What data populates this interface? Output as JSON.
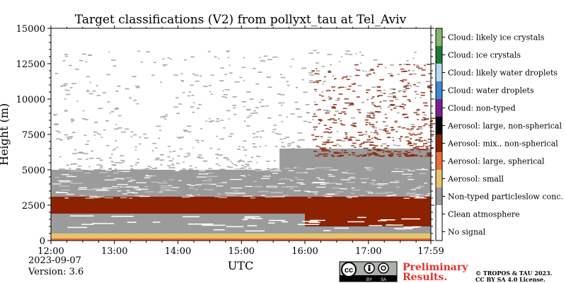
{
  "chart_data": {
    "type": "heatmap",
    "title": "Target classifications (V2) from pollyxt_tau at Tel_Aviv",
    "xlabel": "UTC",
    "ylabel": "Height (m)",
    "x_ticks": [
      "12:00",
      "13:00",
      "14:00",
      "15:00",
      "16:00",
      "17:00",
      "17:59"
    ],
    "x_range_hours": [
      12.0,
      17.983
    ],
    "y_ticks": [
      0,
      2500,
      5000,
      7500,
      10000,
      12500,
      15000
    ],
    "y_range": [
      0,
      15000
    ],
    "classes": [
      {
        "label": "No signal",
        "color": "#ffffff"
      },
      {
        "label": "Clean atmosphere",
        "color": "#ffffff"
      },
      {
        "label": "Non-typed particleslow conc.",
        "color": "#9b9b9b"
      },
      {
        "label": "Aerosol: small",
        "color": "#e6c46e"
      },
      {
        "label": "Aerosol: large, spherical",
        "color": "#e8703a"
      },
      {
        "label": "Aerosol: mix., non-spherical",
        "color": "#8c2202"
      },
      {
        "label": "Aerosol: large, non-spherical",
        "color": "#050505"
      },
      {
        "label": "Cloud: non-typed",
        "color": "#7e1f8e"
      },
      {
        "label": "Cloud: water droplets",
        "color": "#3c8ad0"
      },
      {
        "label": "Cloud: likely water droplets",
        "color": "#b9d9f2"
      },
      {
        "label": "Cloud: ice crystals",
        "color": "#1f7a36"
      },
      {
        "label": "Cloud: likely ice crystals",
        "color": "#86b86a"
      }
    ],
    "layers": [
      {
        "class": "Aerosol: small",
        "from_hour": 12.0,
        "to_hour": 17.983,
        "bottom_m": 0,
        "top_m": 1200
      },
      {
        "class": "Aerosol: large, spherical",
        "from_hour": 12.0,
        "to_hour": 17.983,
        "bottom_m": 0,
        "top_m": 150
      },
      {
        "class": "Non-typed particleslow conc.",
        "from_hour": 12.0,
        "to_hour": 17.983,
        "bottom_m": 500,
        "top_m": 3300
      },
      {
        "class": "Aerosol: mix., non-spherical",
        "from_hour": 12.0,
        "to_hour": 17.983,
        "bottom_m": 1900,
        "top_m": 3100
      },
      {
        "class": "Non-typed particleslow conc.",
        "from_hour": 12.0,
        "to_hour": 17.983,
        "bottom_m": 3100,
        "top_m": 5000
      },
      {
        "class": "Aerosol: mix., non-spherical",
        "from_hour": 16.0,
        "to_hour": 17.983,
        "bottom_m": 1000,
        "top_m": 2100
      },
      {
        "class": "Non-typed particleslow conc.",
        "from_hour": 15.6,
        "to_hour": 17.983,
        "bottom_m": 5000,
        "top_m": 6500
      }
    ],
    "scatter_regions": [
      {
        "class": "Aerosol: mix., non-spherical",
        "from_hour": 16.1,
        "to_hour": 17.983,
        "bottom_m": 6000,
        "top_m": 12500
      },
      {
        "class": "Non-typed particleslow conc.",
        "from_hour": 12.0,
        "to_hour": 17.983,
        "bottom_m": 5000,
        "top_m": 13500
      }
    ]
  },
  "footer": {
    "date": "2023-09-07",
    "version": "Version: 3.6",
    "cc_letters": "cc",
    "cc_by": "BY",
    "cc_sa": "SA",
    "preliminary_line1": "Preliminary",
    "preliminary_line2": "Results.",
    "copyright_line1": "© TROPOS & TAU 2023.",
    "copyright_line2": "CC BY SA 4.0 License."
  }
}
